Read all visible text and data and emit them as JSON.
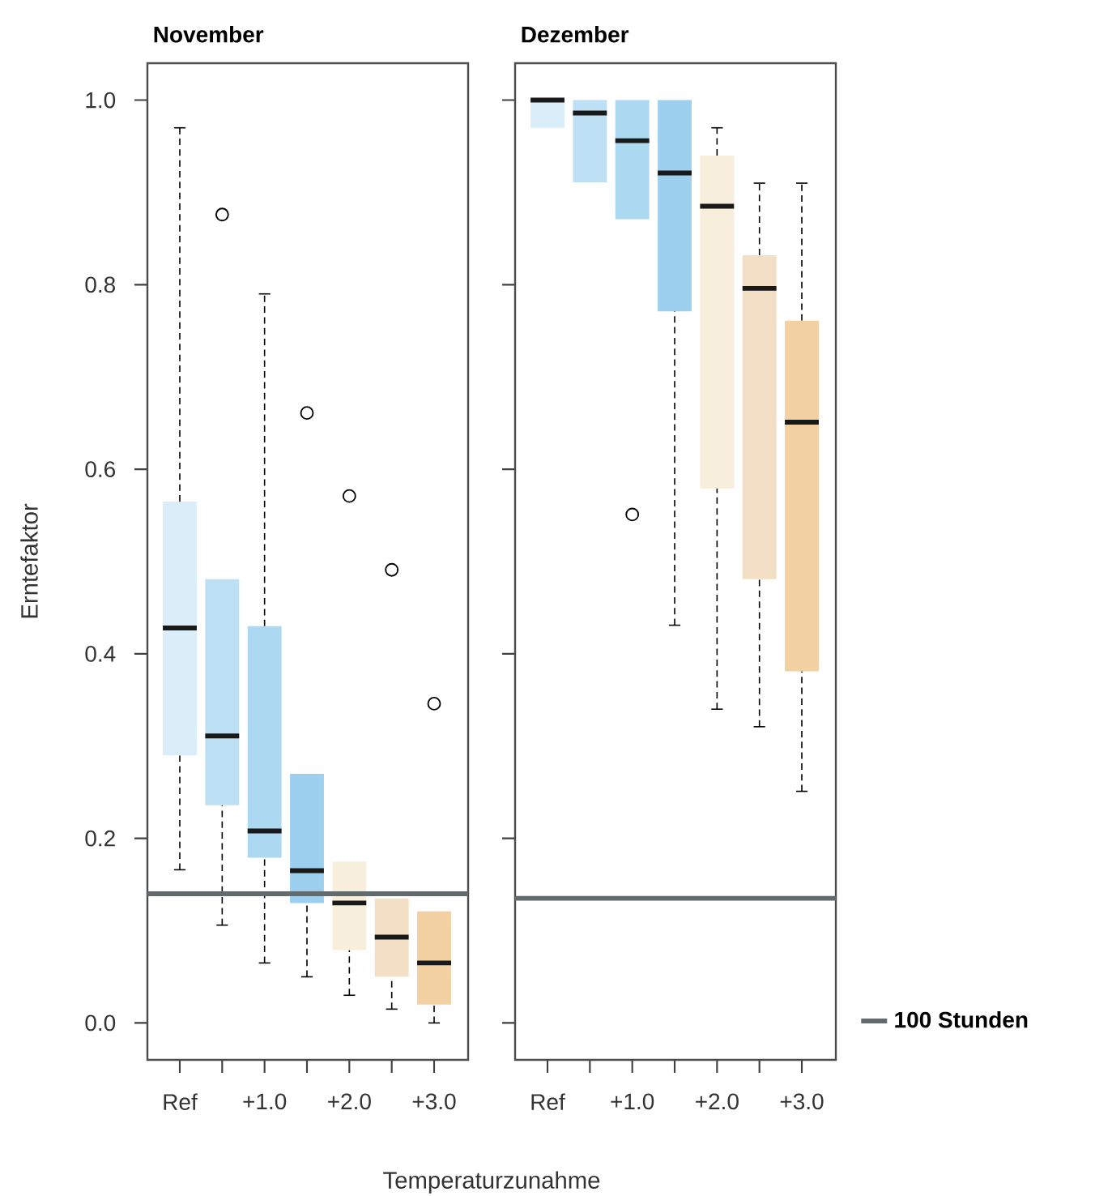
{
  "chart_data": [
    {
      "type": "box",
      "title": "November",
      "xlabel": "Temperaturzunahme",
      "ylabel": "Erntefaktor",
      "categories": [
        "Ref",
        null,
        "+1.0",
        null,
        "+2.0",
        null,
        "+3.0"
      ],
      "colors": [
        "#daeef9",
        "#bde0f4",
        "#acd8f1",
        "#9dd0ef",
        "#f8eedc",
        "#f2dfc6",
        "#f2d0a2"
      ],
      "boxes": [
        {
          "low": 0.166,
          "q1": 0.29,
          "median": 0.428,
          "q3": 0.565,
          "high": 0.97
        },
        {
          "low": 0.106,
          "q1": 0.236,
          "median": 0.311,
          "q3": 0.481,
          "high": 0.481,
          "outliers": [
            0.876
          ]
        },
        {
          "low": 0.065,
          "q1": 0.179,
          "median": 0.208,
          "q3": 0.43,
          "high": 0.79
        },
        {
          "low": 0.05,
          "q1": 0.13,
          "median": 0.165,
          "q3": 0.27,
          "high": 0.27,
          "outliers": [
            0.661
          ]
        },
        {
          "low": 0.03,
          "q1": 0.079,
          "median": 0.13,
          "q3": 0.175,
          "high": 0.175,
          "outliers": [
            0.571
          ]
        },
        {
          "low": 0.015,
          "q1": 0.05,
          "median": 0.093,
          "q3": 0.135,
          "high": 0.135,
          "outliers": [
            0.491
          ]
        },
        {
          "low": 0.0,
          "q1": 0.02,
          "median": 0.065,
          "q3": 0.121,
          "high": 0.121,
          "outliers": [
            0.346
          ]
        }
      ],
      "ylim": [
        -0.04,
        1.04
      ],
      "yticks": [
        {
          "value": 0,
          "label": "0.0"
        },
        {
          "value": 0.2,
          "label": "0.2"
        },
        {
          "value": 0.4,
          "label": "0.4"
        },
        {
          "value": 0.6,
          "label": "0.6"
        },
        {
          "value": 0.8,
          "label": "0.8"
        },
        {
          "value": 1,
          "label": "1.0"
        }
      ],
      "ref_lines": [
        {
          "axis": "y",
          "value": 0.14,
          "color": "#646b6e"
        }
      ]
    },
    {
      "type": "box",
      "title": "Dezember",
      "categories": [
        "Ref",
        null,
        "+1.0",
        null,
        "+2.0",
        null,
        "+3.0"
      ],
      "colors": [
        "#daeef9",
        "#bde0f4",
        "#acd8f1",
        "#9dd0ef",
        "#f8eedc",
        "#f2dfc6",
        "#f2d0a2"
      ],
      "boxes": [
        {
          "low": 0.97,
          "q1": 0.97,
          "median": 1.0,
          "q3": 1.0,
          "high": 1.0
        },
        {
          "low": 0.911,
          "q1": 0.911,
          "median": 0.986,
          "q3": 1.0,
          "high": 1.0
        },
        {
          "low": 0.871,
          "q1": 0.871,
          "median": 0.956,
          "q3": 1.0,
          "high": 1.0,
          "outliers": [
            0.551
          ]
        },
        {
          "low": 0.431,
          "q1": 0.771,
          "median": 0.921,
          "q3": 1.0,
          "high": 1.0
        },
        {
          "low": 0.34,
          "q1": 0.579,
          "median": 0.885,
          "q3": 0.94,
          "high": 0.97
        },
        {
          "low": 0.321,
          "q1": 0.481,
          "median": 0.796,
          "q3": 0.832,
          "high": 0.91
        },
        {
          "low": 0.251,
          "q1": 0.381,
          "median": 0.651,
          "q3": 0.761,
          "high": 0.91
        }
      ],
      "ylim": [
        -0.04,
        1.04
      ],
      "yticks": [
        0,
        0.2,
        0.4,
        0.6,
        0.8,
        1
      ],
      "tick_labels": "x",
      "legend": "right",
      "ref_lines": [
        {
          "axis": "y",
          "value": 0.135,
          "label": "100 Stunden",
          "color": "#646b6e"
        }
      ]
    }
  ]
}
